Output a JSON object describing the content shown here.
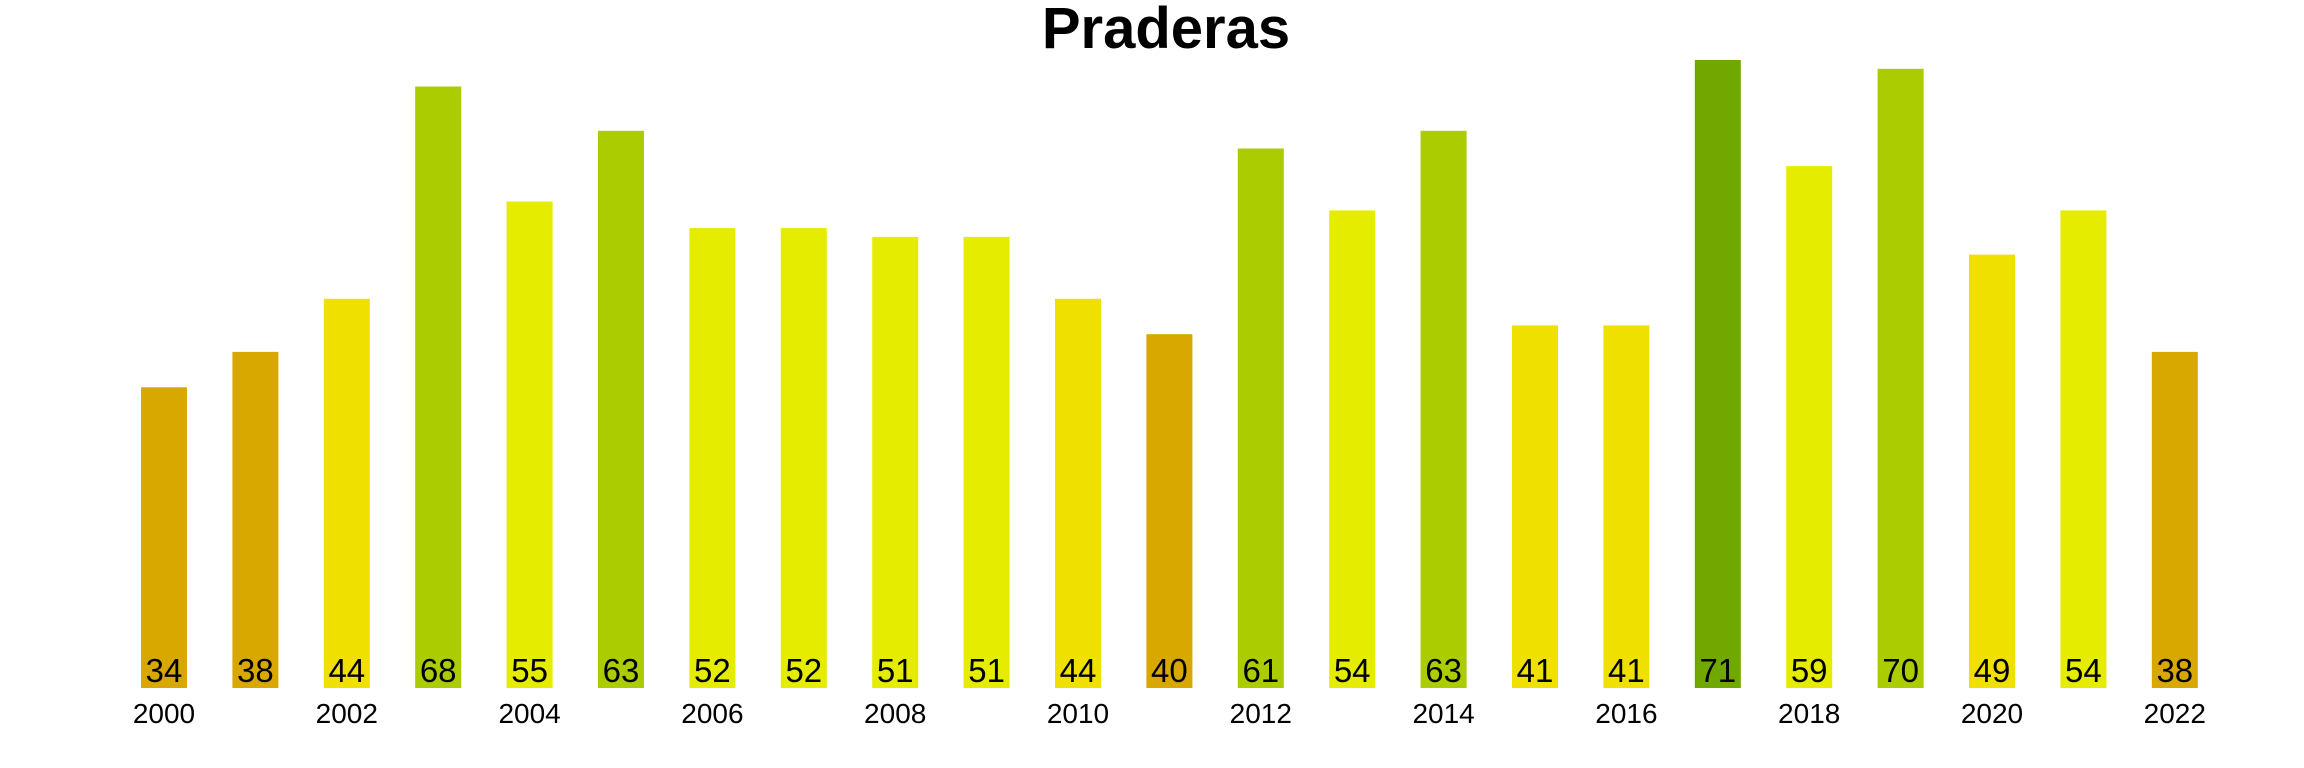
{
  "chart_data": {
    "type": "bar",
    "title": "Praderas",
    "xlabel": "",
    "ylabel": "",
    "grid": false,
    "legend": "none",
    "ylim": [
      0,
      71
    ],
    "categories": [
      "2000",
      "2001",
      "2002",
      "2003",
      "2004",
      "2005",
      "2006",
      "2007",
      "2008",
      "2009",
      "2010",
      "2011",
      "2012",
      "2013",
      "2014",
      "2015",
      "2016",
      "2017",
      "2018",
      "2019",
      "2020",
      "2021",
      "2022"
    ],
    "x_tick_labels": [
      "2000",
      "",
      "2002",
      "",
      "2004",
      "",
      "2006",
      "",
      "2008",
      "",
      "2010",
      "",
      "2012",
      "",
      "2014",
      "",
      "2016",
      "",
      "2018",
      "",
      "2020",
      "",
      "2022"
    ],
    "values": [
      34,
      38,
      44,
      68,
      55,
      63,
      52,
      52,
      51,
      51,
      44,
      40,
      61,
      54,
      63,
      41,
      41,
      71,
      59,
      70,
      49,
      54,
      38
    ],
    "data_labels": [
      "34",
      "38",
      "44",
      "68",
      "55",
      "63",
      "52",
      "52",
      "51",
      "51",
      "44",
      "40",
      "61",
      "54",
      "63",
      "41",
      "41",
      "71",
      "59",
      "70",
      "49",
      "54",
      "38"
    ],
    "colors": [
      "#D9A800",
      "#D9A800",
      "#F0E000",
      "#AACC00",
      "#E5EC00",
      "#AACC00",
      "#E5EC00",
      "#E5EC00",
      "#E5EC00",
      "#E5EC00",
      "#F0E000",
      "#D9A800",
      "#AACC00",
      "#E5EC00",
      "#AACC00",
      "#F0E000",
      "#F0E000",
      "#70A800",
      "#E5EC00",
      "#AACC00",
      "#F0E000",
      "#E5EC00",
      "#D9A800"
    ]
  }
}
